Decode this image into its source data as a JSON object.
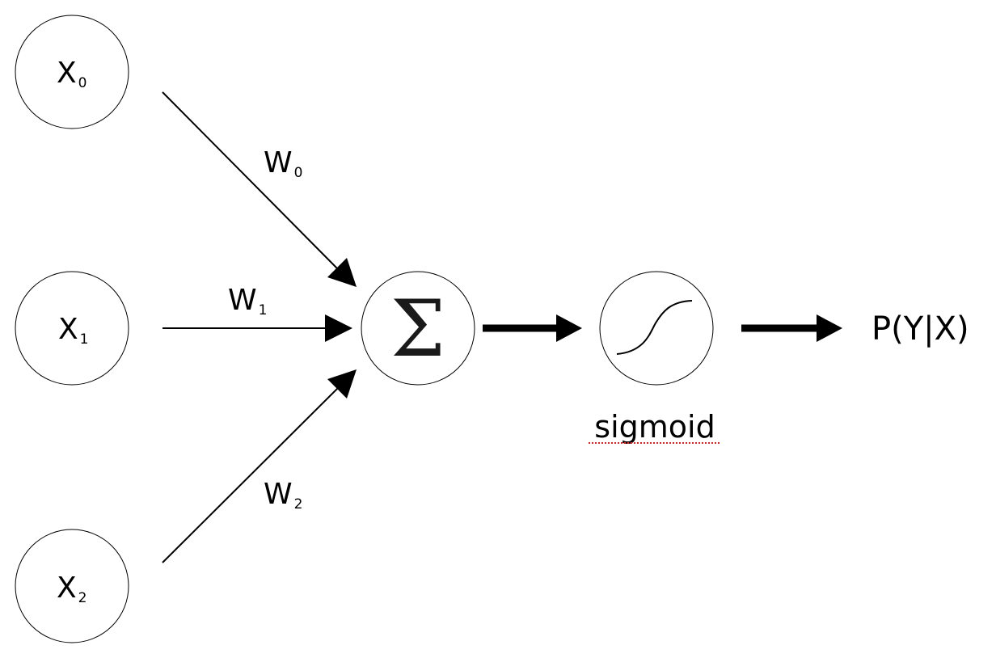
{
  "inputs": [
    {
      "main": "X",
      "sub": "0"
    },
    {
      "main": "X",
      "sub": "1"
    },
    {
      "main": "X",
      "sub": "2"
    }
  ],
  "weights": [
    {
      "main": "W",
      "sub": "0"
    },
    {
      "main": "W",
      "sub": "1"
    },
    {
      "main": "W",
      "sub": "2"
    }
  ],
  "summation": {
    "symbol": "Σ"
  },
  "activation": {
    "label": "sigmoid"
  },
  "output": {
    "label": "P(Y|X)"
  },
  "colors": {
    "stroke": "#000000",
    "spellcheck": "#e02020"
  }
}
